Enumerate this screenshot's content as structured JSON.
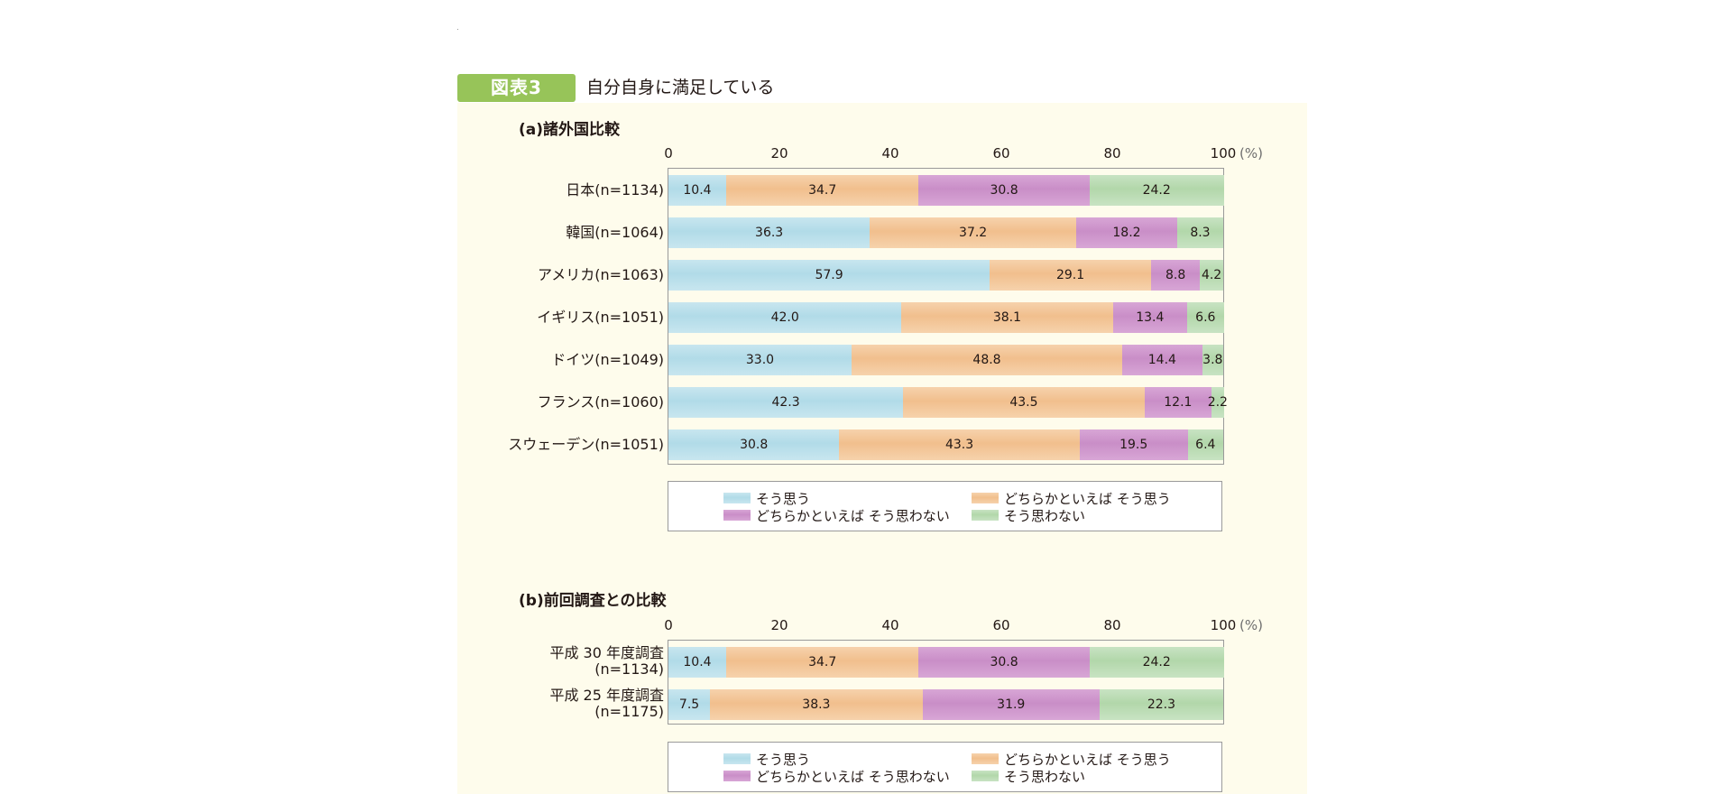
{
  "figure": {
    "badge": "図表3",
    "title": "自分自身に満足している"
  },
  "colors": {
    "series": [
      "#b1dbe8",
      "#f1bf8d",
      "#c98ec7",
      "#b2d7aa"
    ],
    "badge": "#97c459",
    "panel": "#fefcec"
  },
  "chart_data": [
    {
      "type": "bar",
      "orientation": "horizontal-stacked",
      "title": "(a)諸外国比較",
      "x_ticks": [
        "0",
        "20",
        "40",
        "60",
        "80",
        "100"
      ],
      "x_unit": "(%)",
      "xlim": [
        0,
        100
      ],
      "categories": [
        {
          "label": "日本",
          "n": "(n=1134)"
        },
        {
          "label": "韓国",
          "n": "(n=1064)"
        },
        {
          "label": "アメリカ",
          "n": "(n=1063)"
        },
        {
          "label": "イギリス",
          "n": "(n=1051)"
        },
        {
          "label": "ドイツ",
          "n": "(n=1049)"
        },
        {
          "label": "フランス",
          "n": "(n=1060)"
        },
        {
          "label": "スウェーデン",
          "n": "(n=1051)"
        }
      ],
      "series": [
        {
          "name": "そう思う",
          "values": [
            10.4,
            36.3,
            57.9,
            42.0,
            33.0,
            42.3,
            30.8
          ]
        },
        {
          "name": "どちらかといえば そう思う",
          "values": [
            34.7,
            37.2,
            29.1,
            38.1,
            48.8,
            43.5,
            43.3
          ]
        },
        {
          "name": "どちらかといえば そう思わない",
          "values": [
            30.8,
            18.2,
            8.8,
            13.4,
            14.4,
            12.1,
            19.5
          ]
        },
        {
          "name": "そう思わない",
          "values": [
            24.2,
            8.3,
            4.2,
            6.6,
            3.8,
            2.2,
            6.4
          ]
        }
      ],
      "legend": [
        "そう思う",
        "どちらかといえば そう思う",
        "どちらかといえば そう思わない",
        "そう思わない"
      ],
      "legend_position": "bottom"
    },
    {
      "type": "bar",
      "orientation": "horizontal-stacked",
      "title": "(b)前回調査との比較",
      "x_ticks": [
        "0",
        "20",
        "40",
        "60",
        "80",
        "100"
      ],
      "x_unit": "(%)",
      "xlim": [
        0,
        100
      ],
      "categories": [
        {
          "label": "平成 30 年度調査",
          "n": "(n=1134)"
        },
        {
          "label": "平成 25 年度調査",
          "n": "(n=1175)"
        }
      ],
      "series": [
        {
          "name": "そう思う",
          "values": [
            10.4,
            7.5
          ]
        },
        {
          "name": "どちらかといえば そう思う",
          "values": [
            34.7,
            38.3
          ]
        },
        {
          "name": "どちらかといえば そう思わない",
          "values": [
            30.8,
            31.9
          ]
        },
        {
          "name": "そう思わない",
          "values": [
            24.2,
            22.3
          ]
        }
      ],
      "legend": [
        "そう思う",
        "どちらかといえば そう思う",
        "どちらかといえば そう思わない",
        "そう思わない"
      ],
      "legend_position": "bottom"
    }
  ]
}
